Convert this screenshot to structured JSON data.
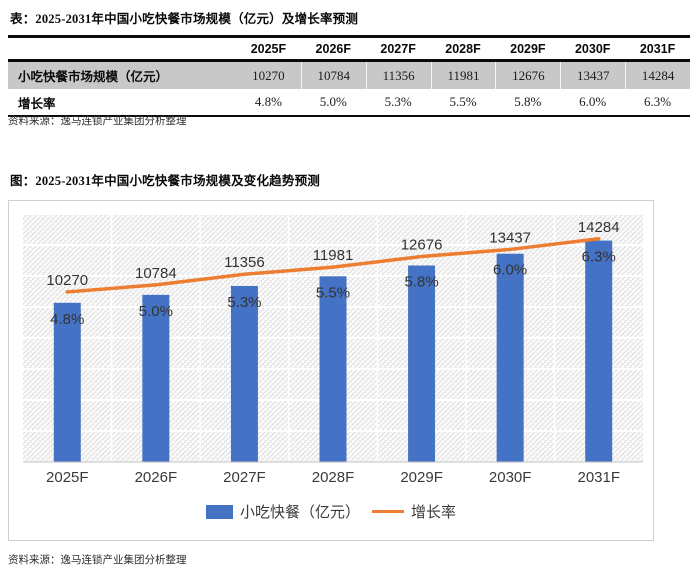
{
  "page": {
    "table_title": "表：2025-2031年中国小吃快餐市场规模（亿元）及增长率预测",
    "table_source": "资料来源：逸马连锁产业集团分析整理",
    "chart_title": "图：2025-2031年中国小吃快餐市场规模及变化趋势预测",
    "chart_source": "资料来源：逸马连锁产业集团分析整理"
  },
  "table": {
    "columns": [
      "2025F",
      "2026F",
      "2027F",
      "2028F",
      "2029F",
      "2030F",
      "2031F"
    ],
    "rows": [
      {
        "label": "小吃快餐市场规模（亿元）",
        "values": [
          "10270",
          "10784",
          "11356",
          "11981",
          "12676",
          "13437",
          "14284"
        ]
      },
      {
        "label": "增长率",
        "values": [
          "4.8%",
          "5.0%",
          "5.3%",
          "5.5%",
          "5.8%",
          "6.0%",
          "6.3%"
        ]
      }
    ]
  },
  "chart_data": {
    "type": "bar",
    "subtype": "bar-line-combo",
    "title": "图：2025-2031年中国小吃快餐市场规模及变化趋势预测",
    "categories": [
      "2025F",
      "2026F",
      "2027F",
      "2028F",
      "2029F",
      "2030F",
      "2031F"
    ],
    "series": [
      {
        "name": "小吃快餐（亿元）",
        "type": "bar",
        "color": "#4472C4",
        "axis": "primary",
        "values": [
          10270,
          10784,
          11356,
          11981,
          12676,
          13437,
          14284
        ]
      },
      {
        "name": "增长率",
        "type": "line",
        "color": "#ED7D31",
        "axis": "secondary",
        "values": [
          4.8,
          5.0,
          5.3,
          5.5,
          5.8,
          6.0,
          6.3
        ]
      }
    ],
    "primary_axis": {
      "min": 0,
      "max": 16000,
      "gridlines": 8,
      "labels_visible": false
    },
    "secondary_axis": {
      "min": 0,
      "max": 7,
      "labels_visible": false
    },
    "legend_position": "bottom",
    "grid": true,
    "plot_background": "diagonal-hatch"
  }
}
